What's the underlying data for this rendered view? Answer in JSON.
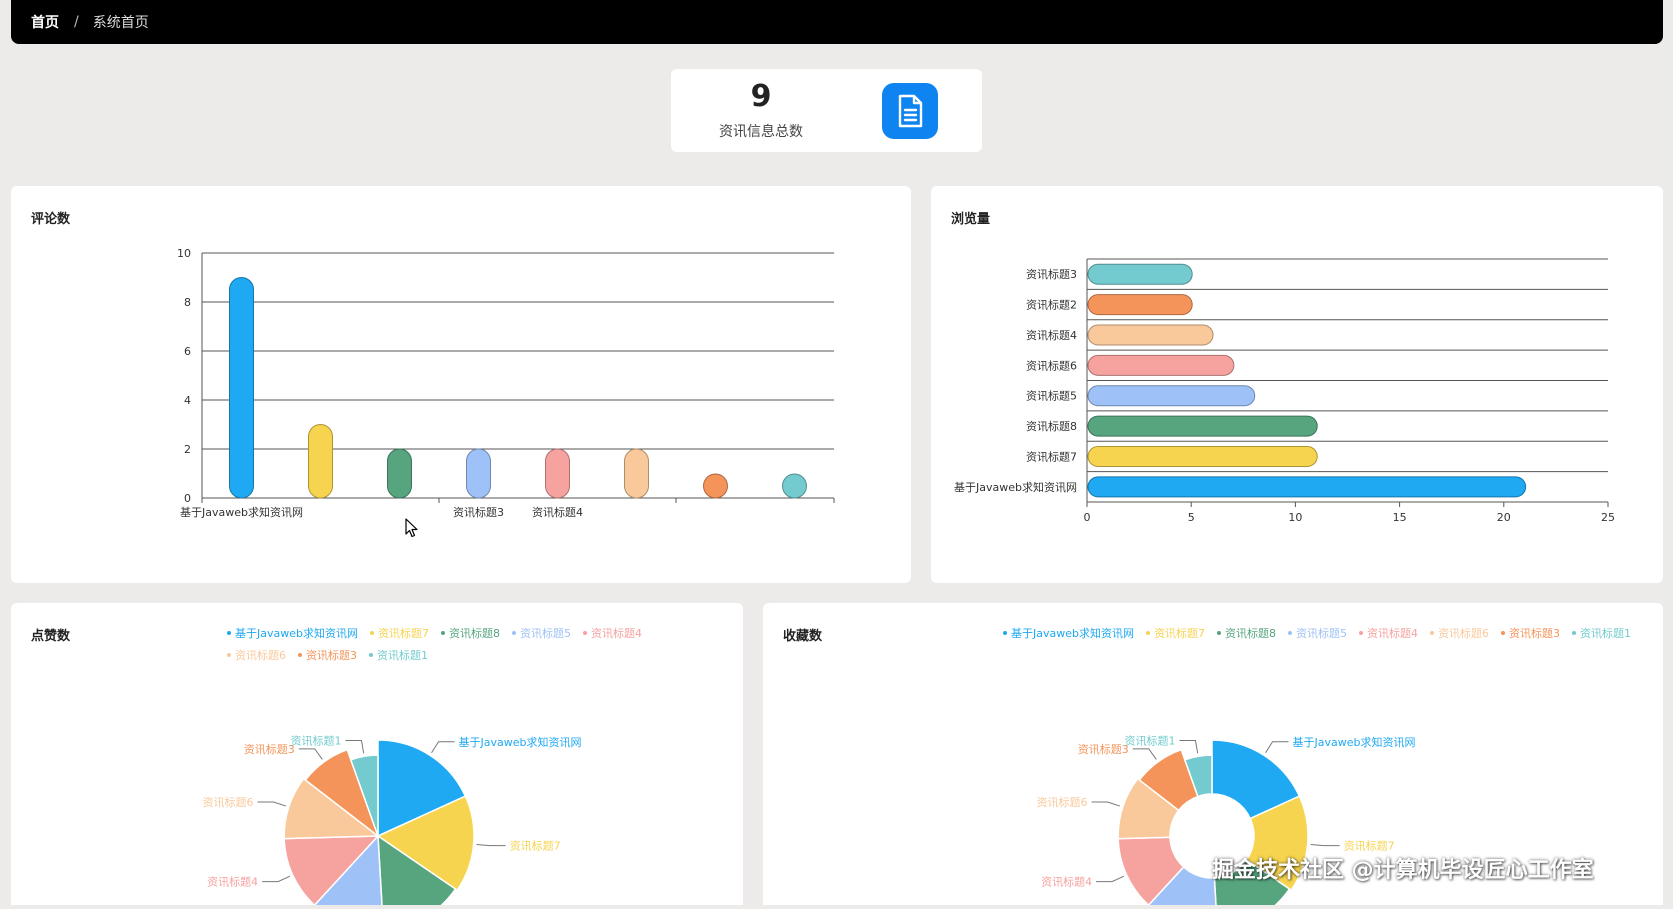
{
  "breadcrumb": {
    "home": "首页",
    "separator": "/",
    "current": "系统首页"
  },
  "stat": {
    "value": "9",
    "label": "资讯信息总数",
    "icon": "document-icon",
    "icon_color": "#0d84f0"
  },
  "colors": {
    "blue": "#1fa9f3",
    "yellow": "#f7d44f",
    "green": "#56a57f",
    "lightblue": "#9ec2f7",
    "pink": "#f6a29f",
    "peach": "#f9c99b",
    "orange": "#f5945a",
    "teal": "#73cbcf"
  },
  "comments_chart": {
    "title": "评论数",
    "chart_data": {
      "type": "bar",
      "categories": [
        "基于Javaweb求知资讯网",
        "资讯标题7",
        "资讯标题8",
        "资讯标题3",
        "资讯标题4",
        "资讯标题6",
        "资讯标题5",
        "资讯标题1"
      ],
      "values": [
        9,
        3,
        2,
        2,
        2,
        2,
        0.5,
        0.5
      ],
      "ylim": [
        0,
        10
      ],
      "yticks": [
        0,
        2,
        4,
        6,
        8,
        10
      ],
      "visible_xticks": [
        "基于Javaweb求知资讯网",
        "资讯标题3",
        "资讯标题4"
      ],
      "grid": true
    }
  },
  "views_chart": {
    "title": "浏览量",
    "chart_data": {
      "type": "bar",
      "orientation": "horizontal",
      "categories": [
        "资讯标题3",
        "资讯标题2",
        "资讯标题4",
        "资讯标题6",
        "资讯标题5",
        "资讯标题8",
        "资讯标题7",
        "基于Javaweb求知资讯网"
      ],
      "values": [
        5,
        5,
        6,
        7,
        8,
        11,
        11,
        21
      ],
      "xlim": [
        0,
        25
      ],
      "xticks": [
        0,
        5,
        10,
        15,
        20,
        25
      ],
      "grid": true
    }
  },
  "likes_chart": {
    "title": "点赞数",
    "legend": [
      "基于Javaweb求知资讯网",
      "资讯标题7",
      "资讯标题8",
      "资讯标题5",
      "资讯标题4",
      "资讯标题6",
      "资讯标题3",
      "资讯标题1"
    ],
    "chart_data": {
      "type": "pie",
      "rose": true,
      "categories": [
        "基于Javaweb求知资讯网",
        "资讯标题7",
        "资讯标题8",
        "资讯标题5",
        "资讯标题4",
        "资讯标题6",
        "资讯标题3",
        "资讯标题1"
      ],
      "values": [
        10,
        9,
        8,
        7,
        7,
        6,
        5,
        3
      ],
      "radius_values": [
        10,
        10,
        9.5,
        9.5,
        9.5,
        9.5,
        9,
        6.5
      ],
      "visible_labels": [
        "资讯标题1",
        "资讯标题3",
        "资讯标题6",
        "资讯标题4",
        "基于Javaweb求知资讯网",
        "资讯标题7"
      ]
    }
  },
  "favs_chart": {
    "title": "收藏数",
    "legend": [
      "基于Javaweb求知资讯网",
      "资讯标题7",
      "资讯标题8",
      "资讯标题5",
      "资讯标题4",
      "资讯标题6",
      "资讯标题3",
      "资讯标题1"
    ],
    "chart_data": {
      "type": "pie",
      "rose": true,
      "donut": true,
      "categories": [
        "基于Javaweb求知资讯网",
        "资讯标题7",
        "资讯标题8",
        "资讯标题5",
        "资讯标题4",
        "资讯标题6",
        "资讯标题3",
        "资讯标题1"
      ],
      "values": [
        10,
        9,
        8,
        7,
        7,
        6,
        5,
        3
      ],
      "radius_values": [
        10,
        10,
        9.5,
        9.5,
        9.5,
        9.5,
        9,
        6.5
      ],
      "visible_labels": [
        "资讯标题1",
        "资讯标题3",
        "资讯标题6",
        "资讯标题4",
        "基于Javaweb求知资讯网",
        "资讯标题7"
      ]
    }
  },
  "watermark": "掘金技术社区 @计算机毕设匠心工作室"
}
